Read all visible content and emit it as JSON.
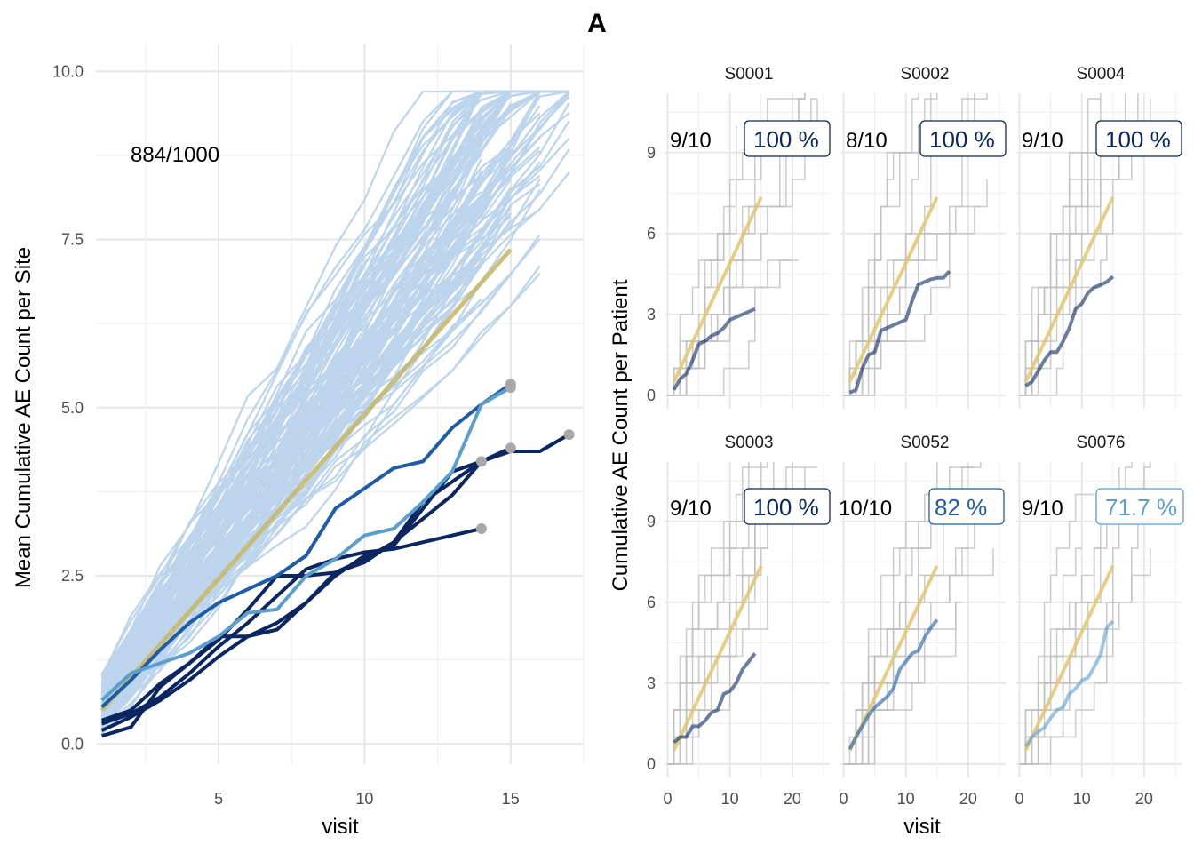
{
  "title": "A",
  "left_panel": {
    "annotation": "884/1000",
    "xlabel": "visit",
    "ylabel": "Mean Cumulative AE Count per Site",
    "x_ticks": [
      "5",
      "10",
      "15"
    ],
    "y_ticks": [
      "0.0",
      "2.5",
      "5.0",
      "7.5",
      "10.0"
    ]
  },
  "right_panel": {
    "xlabel": "visit",
    "ylabel": "Cumulative AE Count per Patient",
    "x_ticks": [
      "0",
      "10",
      "20"
    ],
    "y_ticks": [
      "0",
      "3",
      "6",
      "9"
    ]
  },
  "colors": {
    "background_sites": "#bcd4ec",
    "reference": "#c8b96a",
    "reference_facet": "#e2c770",
    "dark_navy": "#0b2660",
    "mid_blue": "#1f5ca8",
    "light_blue": "#5b9fcf",
    "grey_points": "#a8a8a8",
    "patient_lines": "#bdbdbd",
    "grid": "#e6e6e6"
  },
  "chart_data": [
    {
      "type": "line",
      "xlim": [
        0.8,
        17.5
      ],
      "ylim": [
        -0.3,
        10.4
      ],
      "grid": true,
      "background_series_count": 120,
      "reference": {
        "x": [
          1,
          15
        ],
        "y": [
          0.5,
          7.35
        ]
      },
      "series": [
        {
          "site": "S0001",
          "color": "#0b2660",
          "x": [
            1,
            2,
            3,
            4,
            5,
            6,
            7,
            8,
            9,
            10,
            11,
            12,
            13,
            14
          ],
          "y": [
            0.3,
            0.45,
            0.7,
            1.05,
            1.45,
            1.8,
            2.2,
            2.6,
            2.75,
            2.85,
            2.9,
            3.0,
            3.1,
            3.2
          ]
        },
        {
          "site": "S0002",
          "color": "#0b2660",
          "x": [
            1,
            2,
            3,
            4,
            5,
            6,
            7,
            8,
            9,
            10,
            11,
            12,
            13,
            14,
            15,
            16,
            17
          ],
          "y": [
            0.12,
            0.25,
            0.85,
            1.2,
            1.55,
            2.0,
            2.5,
            2.5,
            2.55,
            2.75,
            3.0,
            3.6,
            3.9,
            4.2,
            4.35,
            4.35,
            4.6
          ]
        },
        {
          "site": "S0004",
          "color": "#0b2660",
          "x": [
            1,
            2,
            3,
            4,
            5,
            6,
            7,
            8,
            9,
            10,
            11,
            12,
            13,
            14,
            15
          ],
          "y": [
            0.35,
            0.5,
            0.9,
            1.2,
            1.6,
            1.6,
            1.8,
            2.1,
            2.5,
            2.8,
            2.95,
            3.5,
            4.05,
            4.2,
            4.4
          ]
        },
        {
          "site": "S0003",
          "color": "#0b2660",
          "x": [
            1,
            2,
            3,
            4,
            5,
            6,
            7,
            8,
            9,
            10,
            11,
            12,
            13,
            14
          ],
          "y": [
            0.2,
            0.4,
            0.65,
            0.95,
            1.3,
            1.6,
            1.7,
            2.1,
            2.55,
            2.7,
            3.0,
            3.35,
            3.7,
            4.2
          ]
        },
        {
          "site": "S0052",
          "color": "#1f5ca8",
          "x": [
            1,
            2,
            3,
            4,
            5,
            6,
            7,
            8,
            9,
            10,
            11,
            12,
            13,
            14,
            15
          ],
          "y": [
            0.55,
            0.95,
            1.4,
            1.8,
            2.1,
            2.3,
            2.5,
            2.8,
            3.5,
            3.8,
            4.1,
            4.2,
            4.7,
            5.05,
            5.35
          ]
        },
        {
          "site": "S0076",
          "color": "#5b9fcf",
          "x": [
            1,
            2,
            3,
            4,
            5,
            6,
            7,
            8,
            9,
            10,
            11,
            12,
            13,
            14,
            15
          ],
          "y": [
            0.65,
            1.05,
            1.2,
            1.35,
            1.6,
            1.95,
            2.0,
            2.5,
            2.75,
            3.1,
            3.2,
            3.6,
            4.05,
            5.05,
            5.3
          ]
        }
      ]
    },
    {
      "type": "line",
      "facets": [
        {
          "id": "S0001",
          "fraction": "9/10",
          "percent": "100 %",
          "accent": "#0b2660",
          "site_x": [
            1,
            2,
            3,
            4,
            5,
            6,
            7,
            8,
            9,
            10,
            11,
            12,
            13,
            14
          ],
          "site_y": [
            0.2,
            0.6,
            0.8,
            1.3,
            1.9,
            2.0,
            2.2,
            2.3,
            2.5,
            2.8,
            2.9,
            3.0,
            3.1,
            3.2
          ]
        },
        {
          "id": "S0002",
          "fraction": "8/10",
          "percent": "100 %",
          "accent": "#0b2660",
          "site_x": [
            1,
            2,
            3,
            4,
            5,
            6,
            7,
            8,
            9,
            10,
            11,
            12,
            13,
            14,
            15,
            16,
            17
          ],
          "site_y": [
            0.1,
            0.2,
            1.0,
            1.5,
            1.6,
            2.4,
            2.5,
            2.6,
            2.7,
            2.8,
            3.5,
            4.1,
            4.2,
            4.3,
            4.35,
            4.35,
            4.6
          ]
        },
        {
          "id": "S0004",
          "fraction": "9/10",
          "percent": "100 %",
          "accent": "#0b2660",
          "site_x": [
            1,
            2,
            3,
            4,
            5,
            6,
            7,
            8,
            9,
            10,
            11,
            12,
            13,
            14,
            15
          ],
          "site_y": [
            0.35,
            0.5,
            0.9,
            1.3,
            1.6,
            1.6,
            2.0,
            2.5,
            3.2,
            3.4,
            3.8,
            4.0,
            4.1,
            4.2,
            4.4
          ]
        },
        {
          "id": "S0003",
          "fraction": "9/10",
          "percent": "100 %",
          "accent": "#0b2660",
          "site_x": [
            1,
            2,
            3,
            4,
            5,
            6,
            7,
            8,
            9,
            10,
            11,
            12,
            13,
            14
          ],
          "site_y": [
            0.8,
            1.0,
            1.0,
            1.4,
            1.4,
            1.6,
            1.9,
            2.0,
            2.6,
            2.7,
            3.0,
            3.5,
            3.8,
            4.1
          ]
        },
        {
          "id": "S0052",
          "fraction": "10/10",
          "percent": "82 %",
          "accent": "#1f5ca8",
          "site_x": [
            1,
            2,
            3,
            4,
            5,
            6,
            7,
            8,
            9,
            10,
            11,
            12,
            13,
            14,
            15
          ],
          "site_y": [
            0.55,
            1.0,
            1.4,
            1.8,
            2.1,
            2.3,
            2.5,
            2.8,
            3.5,
            3.8,
            4.1,
            4.2,
            4.7,
            5.05,
            5.35
          ]
        },
        {
          "id": "S0076",
          "fraction": "9/10",
          "percent": "71.7 %",
          "accent": "#5b9fcf",
          "site_x": [
            1,
            2,
            3,
            4,
            5,
            6,
            7,
            8,
            9,
            10,
            11,
            12,
            13,
            14,
            15
          ],
          "site_y": [
            0.65,
            1.0,
            1.2,
            1.35,
            1.7,
            2.0,
            2.1,
            2.6,
            2.8,
            3.1,
            3.2,
            3.6,
            4.05,
            5.05,
            5.3
          ]
        }
      ],
      "reference": {
        "x": [
          1,
          15
        ],
        "y": [
          0.5,
          7.35
        ]
      },
      "xlim": [
        -0.5,
        26
      ],
      "ylim": [
        -0.5,
        11.2
      ]
    }
  ]
}
